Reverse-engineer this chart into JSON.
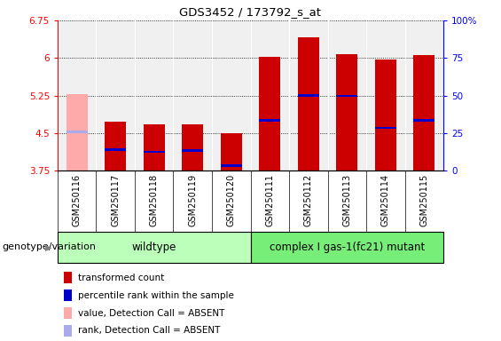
{
  "title": "GDS3452 / 173792_s_at",
  "samples": [
    "GSM250116",
    "GSM250117",
    "GSM250118",
    "GSM250119",
    "GSM250120",
    "GSM250111",
    "GSM250112",
    "GSM250113",
    "GSM250114",
    "GSM250115"
  ],
  "bar_tops": [
    5.27,
    4.72,
    4.67,
    4.67,
    4.5,
    6.03,
    6.42,
    6.08,
    5.97,
    6.05
  ],
  "blue_positions": [
    4.52,
    4.17,
    4.12,
    4.15,
    3.85,
    4.75,
    5.25,
    5.24,
    4.6,
    4.75
  ],
  "absent_value": [
    true,
    false,
    false,
    false,
    false,
    false,
    false,
    false,
    false,
    false
  ],
  "ylim_left": [
    3.75,
    6.75
  ],
  "ylim_right": [
    0,
    100
  ],
  "yticks_left": [
    3.75,
    4.5,
    5.25,
    6.0,
    6.75
  ],
  "yticks_right": [
    0,
    25,
    50,
    75,
    100
  ],
  "ytick_labels_left": [
    "3.75",
    "4.5",
    "5.25",
    "6",
    "6.75"
  ],
  "ytick_labels_right": [
    "0",
    "25",
    "50",
    "75",
    "100%"
  ],
  "bar_bottom": 3.75,
  "bar_color_normal": "#cc0000",
  "bar_color_absent": "#ffaaaa",
  "blue_color_normal": "#0000cc",
  "blue_color_absent": "#aaaaee",
  "wildtype_count": 5,
  "mutant_count": 5,
  "wildtype_label": "wildtype",
  "mutant_label": "complex I gas-1(fc21) mutant",
  "wildtype_bg": "#bbffbb",
  "mutant_bg": "#77ee77",
  "group_label": "genotype/variation",
  "legend_items": [
    {
      "color": "#cc0000",
      "label": "transformed count"
    },
    {
      "color": "#0000cc",
      "label": "percentile rank within the sample"
    },
    {
      "color": "#ffaaaa",
      "label": "value, Detection Call = ABSENT"
    },
    {
      "color": "#aaaaee",
      "label": "rank, Detection Call = ABSENT"
    }
  ],
  "bar_width": 0.55,
  "plot_bg": "#f0f0f0",
  "sample_box_bg": "#cccccc"
}
